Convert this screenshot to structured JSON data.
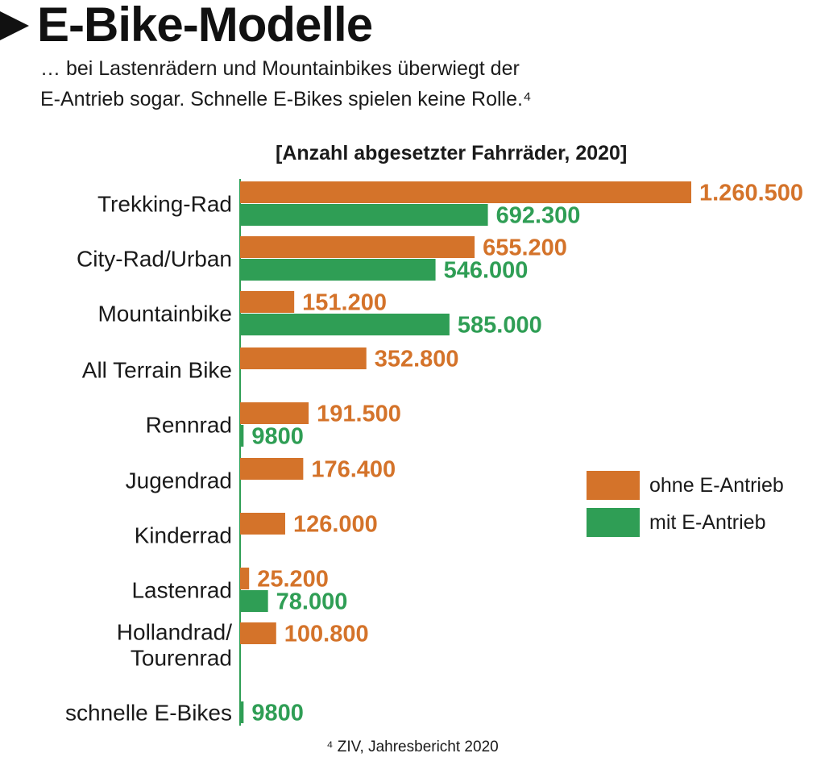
{
  "header": {
    "title": "E-Bike-Modelle",
    "subtitle_line1": "… bei Lastenrädern und Mountainbikes überwiegt der",
    "subtitle_line2": "E-Antrieb sogar. Schnelle E-Bikes spielen keine Rolle.⁴"
  },
  "footnote": "⁴ ZIV, Jahresbericht 2020",
  "colors": {
    "ohne": "#d4732a",
    "mit": "#2f9e55",
    "text": "#1a1a1a"
  },
  "chart_data": {
    "type": "bar",
    "orientation": "horizontal",
    "title": "[Anzahl abgesetzter Fahrräder, 2020]",
    "categories": [
      "Trekking-Rad",
      "City-Rad/Urban",
      "Mountainbike",
      "All Terrain Bike",
      "Rennrad",
      "Jugendrad",
      "Kinderrad",
      "Lastenrad",
      "Hollandrad/\nTourenrad",
      "schnelle E-Bikes"
    ],
    "series": [
      {
        "name": "ohne E-Antrieb",
        "color": "#d4732a",
        "values": [
          1260500,
          655200,
          151200,
          352800,
          191500,
          176400,
          126000,
          25200,
          100800,
          null
        ],
        "labels": [
          "1.260.500",
          "655.200",
          "151.200",
          "352.800",
          "191.500",
          "176.400",
          "126.000",
          "25.200",
          "100.800",
          ""
        ]
      },
      {
        "name": "mit E-Antrieb",
        "color": "#2f9e55",
        "values": [
          692300,
          546000,
          585000,
          null,
          9800,
          null,
          null,
          78000,
          null,
          9800
        ],
        "labels": [
          "692.300",
          "546.000",
          "585.000",
          "",
          "9800",
          "",
          "",
          "78.000",
          "",
          "9800"
        ]
      }
    ],
    "xlim": [
      0,
      1260500
    ],
    "legend_position": "right",
    "grid": false
  }
}
